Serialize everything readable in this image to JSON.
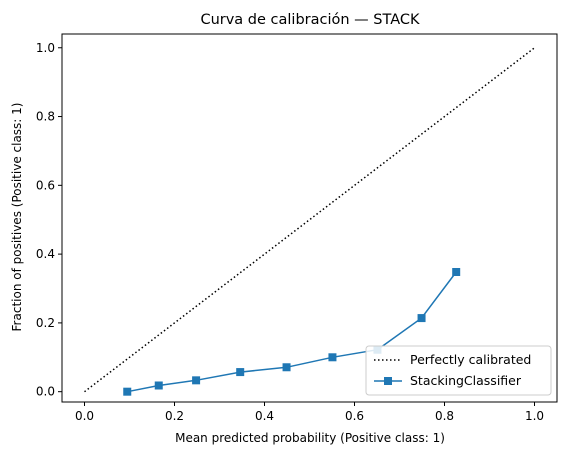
{
  "chart_data": {
    "type": "line",
    "title": "Curva de calibración — STACK",
    "xlabel": "Mean predicted probability (Positive class: 1)",
    "ylabel": "Fraction of positives (Positive class: 1)",
    "xlim": [
      -0.05,
      1.05
    ],
    "ylim": [
      -0.03,
      1.04
    ],
    "xticks": [
      0.0,
      0.2,
      0.4,
      0.6,
      0.8,
      1.0
    ],
    "yticks": [
      0.0,
      0.2,
      0.4,
      0.6,
      0.8,
      1.0
    ],
    "xtick_labels": [
      "0.0",
      "0.2",
      "0.4",
      "0.6",
      "0.8",
      "1.0"
    ],
    "ytick_labels": [
      "0.0",
      "0.2",
      "0.4",
      "0.6",
      "0.8",
      "1.0"
    ],
    "grid": false,
    "legend_position": "lower-right",
    "series": [
      {
        "name": "Perfectly calibrated",
        "style": "dotted",
        "color": "#000000",
        "x": [
          0.0,
          1.0
        ],
        "y": [
          0.0,
          1.0
        ]
      },
      {
        "name": "StackingClassifier",
        "style": "solid",
        "marker": "square",
        "color": "#1f77b4",
        "x": [
          0.095,
          0.165,
          0.248,
          0.346,
          0.449,
          0.551,
          0.651,
          0.749,
          0.826
        ],
        "y": [
          0.0,
          0.018,
          0.033,
          0.057,
          0.071,
          0.1,
          0.122,
          0.214,
          0.348
        ]
      }
    ]
  }
}
